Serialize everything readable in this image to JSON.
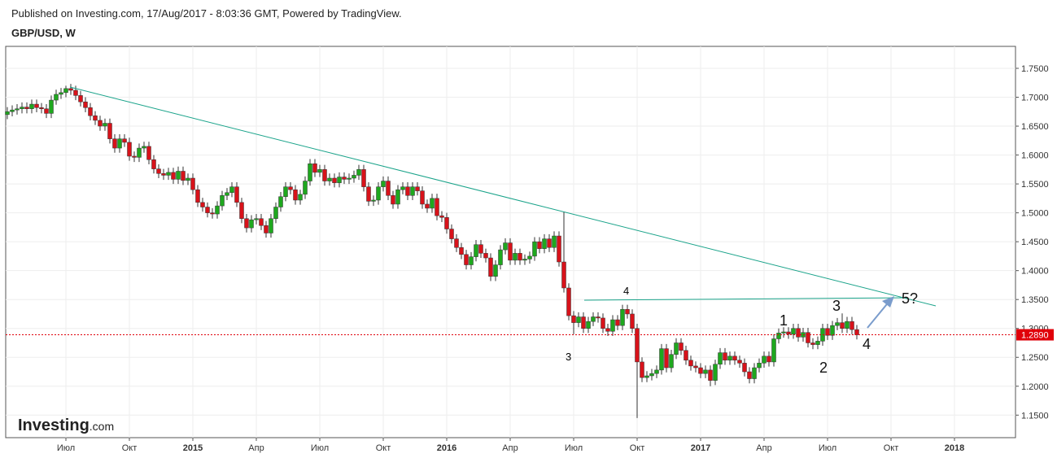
{
  "published": "Published on Investing.com, 17/Aug/2017 - 8:03:36 GMT, Powered by TradingView.",
  "logo": {
    "name": "Investing",
    "suffix": ".com"
  },
  "chart_data": {
    "type": "candlestick",
    "title": "GBP/USD, W",
    "annotations": [
      "4",
      "3",
      "1",
      "2",
      "3",
      "4",
      "5?"
    ],
    "colors": {
      "up": "#1ea81e",
      "down": "#d8121a",
      "trend": "#1aa38a",
      "last": "#e0000a"
    },
    "grid": true,
    "ylim": [
      1.111,
      1.788
    ],
    "yticks": [
      {
        "value": 1.15,
        "label": "1.1500"
      },
      {
        "value": 1.2,
        "label": "1.2000"
      },
      {
        "value": 1.25,
        "label": "1.2500"
      },
      {
        "value": 1.3,
        "label": "1.3000"
      },
      {
        "value": 1.35,
        "label": "1.3500"
      },
      {
        "value": 1.4,
        "label": "1.4000"
      },
      {
        "value": 1.45,
        "label": "1.4500"
      },
      {
        "value": 1.5,
        "label": "1.5000"
      },
      {
        "value": 1.55,
        "label": "1.5500"
      },
      {
        "value": 1.6,
        "label": "1.6000"
      },
      {
        "value": 1.65,
        "label": "1.6500"
      },
      {
        "value": 1.7,
        "label": "1.7000"
      },
      {
        "value": 1.75,
        "label": "1.7500"
      }
    ],
    "last_price": {
      "value": 1.289,
      "label": "1.2890"
    },
    "categories": [
      null,
      null,
      null,
      null,
      null,
      null,
      null,
      null,
      null,
      null,
      null,
      null,
      "Июл",
      null,
      null,
      null,
      null,
      null,
      null,
      null,
      null,
      null,
      null,
      null,
      null,
      "Окт",
      null,
      null,
      null,
      null,
      null,
      null,
      null,
      null,
      null,
      null,
      null,
      null,
      "2015",
      null,
      null,
      null,
      null,
      null,
      null,
      null,
      null,
      null,
      null,
      null,
      null,
      "Апр",
      null,
      null,
      null,
      null,
      null,
      null,
      null,
      null,
      null,
      null,
      null,
      null,
      "Июл",
      null,
      null,
      null,
      null,
      null,
      null,
      null,
      null,
      null,
      null,
      null,
      null,
      "Окт",
      null,
      null,
      null,
      null,
      null,
      null,
      null,
      null,
      null,
      null,
      null,
      null,
      "2016",
      null,
      null,
      null,
      null,
      null,
      null,
      null,
      null,
      null,
      null,
      null,
      null,
      "Апр",
      null,
      null,
      null,
      null,
      null,
      null,
      null,
      null,
      null,
      null,
      null,
      null,
      "Июл",
      null,
      null,
      null,
      null,
      null,
      null,
      null,
      null,
      null,
      null,
      null,
      null,
      "Окт",
      null,
      null,
      null,
      null,
      null,
      null,
      null,
      null,
      null,
      null,
      null,
      null,
      "2017",
      null,
      null,
      null,
      null,
      null,
      null,
      null,
      null,
      null,
      null,
      null,
      null,
      "Апр",
      null,
      null,
      null,
      null,
      null,
      null,
      null,
      null,
      null,
      null,
      null,
      null,
      "Июл",
      null,
      null,
      null,
      null,
      null,
      null,
      null,
      null,
      null,
      null,
      null,
      null,
      "Окт",
      null,
      null,
      null,
      null,
      null,
      null,
      null,
      null,
      null,
      null,
      null,
      null,
      "2018",
      null,
      null,
      null,
      null,
      null,
      null,
      null,
      null,
      null,
      null,
      null
    ],
    "open": [
      1.67,
      1.675,
      1.678,
      1.68,
      1.683,
      1.68,
      1.688,
      1.682,
      1.68,
      1.672,
      1.695,
      1.705,
      1.708,
      1.715,
      1.712,
      1.703,
      1.692,
      1.682,
      1.668,
      1.66,
      1.65,
      1.655,
      1.628,
      1.612,
      1.628,
      1.622,
      1.598,
      1.596,
      1.612,
      1.615,
      1.592,
      1.576,
      1.568,
      1.565,
      1.57,
      1.558,
      1.572,
      1.556,
      1.56,
      1.54,
      1.518,
      1.51,
      1.5,
      1.498,
      1.512,
      1.53,
      1.535,
      1.545,
      1.518,
      1.49,
      1.474,
      1.488,
      1.49,
      1.478,
      1.465,
      1.49,
      1.51,
      1.528,
      1.545,
      1.54,
      1.522,
      1.532,
      1.555,
      1.585,
      1.57,
      1.575,
      1.555,
      1.56,
      1.552,
      1.562,
      1.558,
      1.56,
      1.565,
      1.575,
      1.545,
      1.52,
      1.522,
      1.545,
      1.555,
      1.53,
      1.515,
      1.54,
      1.545,
      1.53,
      1.545,
      1.538,
      1.515,
      1.508,
      1.525,
      1.495,
      1.492,
      1.472,
      1.455,
      1.44,
      1.428,
      1.41,
      1.424,
      1.445,
      1.43,
      1.422,
      1.39,
      1.41,
      1.436,
      1.448,
      1.418,
      1.43,
      1.418,
      1.42,
      1.425,
      1.45,
      1.438,
      1.455,
      1.44,
      1.46,
      1.415,
      1.37,
      1.322,
      1.31,
      1.32,
      1.3,
      1.312,
      1.32,
      1.318,
      1.3,
      1.295,
      1.315,
      1.305,
      1.333,
      1.325,
      1.3,
      1.242,
      1.215,
      1.218,
      1.222,
      1.228,
      1.265,
      1.232,
      1.255,
      1.275,
      1.262,
      1.245,
      1.235,
      1.232,
      1.222,
      1.228,
      1.21,
      1.238,
      1.258,
      1.245,
      1.252,
      1.245,
      1.24,
      1.225,
      1.213,
      1.232,
      1.24,
      1.252,
      1.242,
      1.282,
      1.292,
      1.294,
      1.29,
      1.3,
      1.285,
      1.293,
      1.275,
      1.272,
      1.278,
      1.3,
      1.288,
      1.305,
      1.31,
      1.3,
      1.312,
      1.298,
      null,
      null,
      null,
      null,
      null,
      null,
      null,
      null,
      null,
      null,
      null,
      null,
      null,
      null,
      null,
      null,
      null,
      null,
      null,
      null,
      null,
      null,
      null,
      null,
      null,
      null,
      null,
      null,
      null,
      null,
      null
    ],
    "high": [
      1.683,
      1.686,
      1.688,
      1.691,
      1.691,
      1.696,
      1.696,
      1.69,
      1.688,
      1.703,
      1.713,
      1.716,
      1.72,
      1.723,
      1.72,
      1.711,
      1.7,
      1.69,
      1.676,
      1.668,
      1.663,
      1.663,
      1.636,
      1.636,
      1.636,
      1.63,
      1.606,
      1.62,
      1.623,
      1.623,
      1.6,
      1.584,
      1.576,
      1.578,
      1.578,
      1.58,
      1.58,
      1.568,
      1.568,
      1.548,
      1.526,
      1.518,
      1.508,
      1.52,
      1.538,
      1.543,
      1.553,
      1.553,
      1.526,
      1.498,
      1.496,
      1.498,
      1.498,
      1.486,
      1.498,
      1.518,
      1.536,
      1.553,
      1.553,
      1.548,
      1.54,
      1.563,
      1.593,
      1.593,
      1.583,
      1.583,
      1.568,
      1.568,
      1.57,
      1.57,
      1.568,
      1.573,
      1.583,
      1.583,
      1.553,
      1.53,
      1.553,
      1.563,
      1.563,
      1.538,
      1.548,
      1.553,
      1.553,
      1.553,
      1.553,
      1.546,
      1.523,
      1.533,
      1.533,
      1.503,
      1.5,
      1.48,
      1.463,
      1.448,
      1.436,
      1.432,
      1.453,
      1.453,
      1.438,
      1.43,
      1.418,
      1.444,
      1.456,
      1.456,
      1.438,
      1.438,
      1.428,
      1.433,
      1.458,
      1.458,
      1.463,
      1.463,
      1.468,
      1.468,
      1.502,
      1.378,
      1.33,
      1.328,
      1.328,
      1.32,
      1.328,
      1.328,
      1.326,
      1.308,
      1.323,
      1.323,
      1.341,
      1.341,
      1.333,
      1.308,
      1.25,
      1.226,
      1.23,
      1.236,
      1.273,
      1.273,
      1.263,
      1.283,
      1.283,
      1.27,
      1.253,
      1.243,
      1.24,
      1.236,
      1.236,
      1.246,
      1.266,
      1.266,
      1.26,
      1.26,
      1.253,
      1.248,
      1.233,
      1.24,
      1.248,
      1.26,
      1.26,
      1.29,
      1.3,
      1.302,
      1.302,
      1.308,
      1.308,
      1.301,
      1.301,
      1.283,
      1.286,
      1.308,
      1.308,
      1.313,
      1.318,
      1.326,
      1.32,
      1.32,
      1.306,
      null,
      null,
      null,
      null,
      null,
      null,
      null,
      null,
      null,
      null,
      null,
      null,
      null,
      null,
      null,
      null,
      null,
      null,
      null,
      null,
      null,
      null,
      null,
      null,
      null,
      null,
      null,
      null,
      null,
      null,
      null
    ],
    "low": [
      1.662,
      1.667,
      1.67,
      1.672,
      1.672,
      1.672,
      1.674,
      1.672,
      1.664,
      1.664,
      1.687,
      1.697,
      1.7,
      1.704,
      1.695,
      1.684,
      1.674,
      1.66,
      1.652,
      1.642,
      1.642,
      1.62,
      1.604,
      1.604,
      1.614,
      1.59,
      1.588,
      1.588,
      1.604,
      1.584,
      1.568,
      1.56,
      1.557,
      1.557,
      1.55,
      1.55,
      1.548,
      1.548,
      1.532,
      1.51,
      1.502,
      1.492,
      1.49,
      1.49,
      1.504,
      1.522,
      1.527,
      1.51,
      1.482,
      1.466,
      1.466,
      1.48,
      1.47,
      1.457,
      1.457,
      1.482,
      1.502,
      1.52,
      1.532,
      1.514,
      1.514,
      1.524,
      1.547,
      1.562,
      1.562,
      1.547,
      1.547,
      1.544,
      1.544,
      1.55,
      1.55,
      1.552,
      1.557,
      1.537,
      1.512,
      1.512,
      1.514,
      1.537,
      1.522,
      1.507,
      1.507,
      1.532,
      1.522,
      1.522,
      1.53,
      1.507,
      1.5,
      1.5,
      1.487,
      1.484,
      1.464,
      1.447,
      1.432,
      1.42,
      1.402,
      1.402,
      1.416,
      1.422,
      1.414,
      1.382,
      1.382,
      1.402,
      1.428,
      1.41,
      1.41,
      1.41,
      1.41,
      1.412,
      1.417,
      1.43,
      1.43,
      1.432,
      1.432,
      1.407,
      1.362,
      1.314,
      1.29,
      1.302,
      1.292,
      1.292,
      1.304,
      1.31,
      1.292,
      1.287,
      1.287,
      1.297,
      1.297,
      1.317,
      1.292,
      1.145,
      1.207,
      1.207,
      1.21,
      1.214,
      1.22,
      1.224,
      1.224,
      1.247,
      1.254,
      1.237,
      1.227,
      1.224,
      1.214,
      1.214,
      1.2,
      1.202,
      1.23,
      1.237,
      1.237,
      1.237,
      1.232,
      1.217,
      1.205,
      1.205,
      1.224,
      1.232,
      1.234,
      1.234,
      1.274,
      1.284,
      1.282,
      1.282,
      1.277,
      1.277,
      1.267,
      1.264,
      1.264,
      1.27,
      1.28,
      1.28,
      1.297,
      1.292,
      1.292,
      1.29,
      1.281,
      null,
      null,
      null,
      null,
      null,
      null,
      null,
      null,
      null,
      null,
      null,
      null,
      null,
      null,
      null,
      null,
      null,
      null,
      null,
      null,
      null,
      null,
      null,
      null,
      null,
      null,
      null,
      null,
      null,
      null,
      null
    ],
    "close": [
      1.675,
      1.678,
      1.68,
      1.683,
      1.68,
      1.688,
      1.682,
      1.68,
      1.672,
      1.695,
      1.705,
      1.708,
      1.715,
      1.712,
      1.703,
      1.692,
      1.682,
      1.668,
      1.66,
      1.65,
      1.655,
      1.628,
      1.612,
      1.628,
      1.622,
      1.598,
      1.596,
      1.612,
      1.615,
      1.592,
      1.576,
      1.568,
      1.565,
      1.57,
      1.558,
      1.572,
      1.556,
      1.56,
      1.54,
      1.518,
      1.51,
      1.5,
      1.498,
      1.512,
      1.53,
      1.535,
      1.545,
      1.518,
      1.49,
      1.474,
      1.488,
      1.49,
      1.478,
      1.465,
      1.49,
      1.51,
      1.528,
      1.545,
      1.54,
      1.522,
      1.532,
      1.555,
      1.585,
      1.57,
      1.575,
      1.555,
      1.56,
      1.552,
      1.562,
      1.558,
      1.56,
      1.565,
      1.575,
      1.545,
      1.52,
      1.522,
      1.545,
      1.555,
      1.53,
      1.515,
      1.54,
      1.545,
      1.53,
      1.545,
      1.538,
      1.515,
      1.508,
      1.525,
      1.495,
      1.492,
      1.472,
      1.455,
      1.44,
      1.428,
      1.41,
      1.424,
      1.445,
      1.43,
      1.422,
      1.39,
      1.41,
      1.436,
      1.448,
      1.418,
      1.43,
      1.418,
      1.42,
      1.425,
      1.45,
      1.438,
      1.455,
      1.44,
      1.46,
      1.415,
      1.37,
      1.322,
      1.31,
      1.32,
      1.3,
      1.312,
      1.32,
      1.318,
      1.3,
      1.295,
      1.315,
      1.305,
      1.333,
      1.325,
      1.3,
      1.242,
      1.215,
      1.218,
      1.222,
      1.228,
      1.265,
      1.232,
      1.255,
      1.275,
      1.262,
      1.245,
      1.235,
      1.232,
      1.222,
      1.228,
      1.21,
      1.238,
      1.258,
      1.245,
      1.252,
      1.245,
      1.24,
      1.225,
      1.213,
      1.232,
      1.24,
      1.252,
      1.242,
      1.282,
      1.292,
      1.294,
      1.29,
      1.3,
      1.285,
      1.293,
      1.275,
      1.272,
      1.278,
      1.3,
      1.288,
      1.305,
      1.31,
      1.3,
      1.312,
      1.298,
      1.289,
      null,
      null,
      null,
      null,
      null,
      null,
      null,
      null,
      null,
      null,
      null,
      null,
      null,
      null,
      null,
      null,
      null,
      null,
      null,
      null,
      null,
      null,
      null,
      null,
      null,
      null,
      null,
      null,
      null,
      null,
      null
    ]
  }
}
